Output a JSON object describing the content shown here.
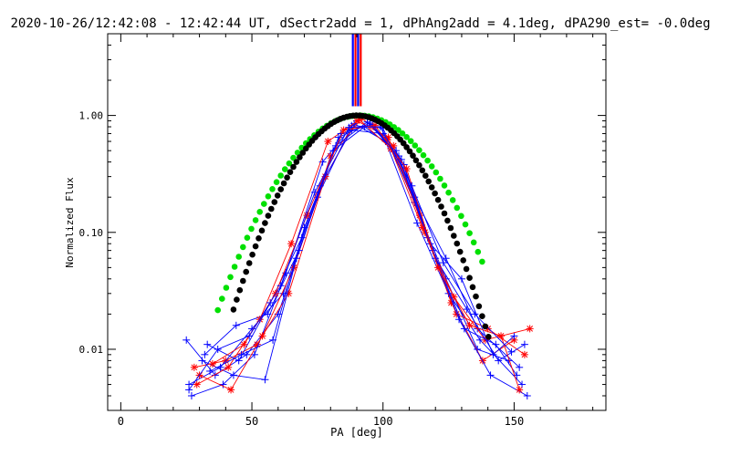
{
  "chart_data": {
    "type": "line",
    "title": "2020-10-26/12:42:08 - 12:42:44 UT, dSectr2add = 1, dPhAng2add = 4.1deg, dPA290_est= -0.0deg",
    "xlabel": "PA [deg]",
    "ylabel": "Normalized Flux",
    "xlim": [
      -5,
      185
    ],
    "ylim": [
      0.003,
      5.0
    ],
    "yscale": "log",
    "x_ticks": [
      0,
      50,
      100,
      150
    ],
    "x_tick_labels": [
      "0",
      "50",
      "100",
      "150"
    ],
    "y_ticks": [
      0.01,
      0.1,
      1.0
    ],
    "y_tick_labels": [
      "0.01",
      "0.10",
      "1.00"
    ],
    "vertical_lines": {
      "x": [
        88.5,
        89.5,
        90.5,
        91.5
      ],
      "y_from": 1.2,
      "colors": [
        "#0000ff",
        "#ff0000",
        "#0000ff",
        "#ff0000"
      ]
    },
    "model_curves": [
      {
        "name": "green-model",
        "color": "#00e000",
        "marker": "dot",
        "peak_x": 91,
        "sigma": 19.5,
        "x_start": 37,
        "x_end": 138,
        "step": 1.6
      },
      {
        "name": "black-model",
        "color": "#000000",
        "marker": "dot",
        "peak_x": 90,
        "sigma": 17.0,
        "x_start": 43,
        "x_end": 141,
        "step": 1.2
      }
    ],
    "series": [
      {
        "name": "blue-1",
        "color": "#0000ff",
        "marker": "+",
        "x": [
          25,
          36,
          48,
          60,
          75,
          88,
          100,
          112,
          124,
          136,
          148
        ],
        "y": [
          0.012,
          0.006,
          0.009,
          0.02,
          0.2,
          0.82,
          0.78,
          0.18,
          0.04,
          0.01,
          0.008
        ]
      },
      {
        "name": "red-1",
        "color": "#ff0000",
        "marker": "*",
        "x": [
          28,
          40,
          52,
          64,
          78,
          90,
          102,
          114,
          126,
          138,
          150
        ],
        "y": [
          0.007,
          0.008,
          0.011,
          0.03,
          0.3,
          0.9,
          0.65,
          0.14,
          0.025,
          0.008,
          0.012
        ]
      },
      {
        "name": "blue-2",
        "color": "#0000ff",
        "marker": "+",
        "x": [
          26,
          38,
          50,
          62,
          76,
          88,
          100,
          112,
          124,
          136,
          152
        ],
        "y": [
          0.005,
          0.007,
          0.015,
          0.03,
          0.25,
          0.75,
          0.7,
          0.2,
          0.06,
          0.015,
          0.007
        ]
      },
      {
        "name": "blue-3",
        "color": "#0000ff",
        "marker": "+",
        "x": [
          27,
          39,
          51,
          63,
          77,
          89,
          101,
          113,
          125,
          137,
          153
        ],
        "y": [
          0.004,
          0.005,
          0.009,
          0.045,
          0.4,
          0.85,
          0.6,
          0.12,
          0.03,
          0.012,
          0.005
        ]
      },
      {
        "name": "red-2",
        "color": "#ff0000",
        "marker": "*",
        "x": [
          30,
          42,
          54,
          66,
          80,
          92,
          104,
          116,
          128,
          140,
          154
        ],
        "y": [
          0.006,
          0.0045,
          0.013,
          0.05,
          0.45,
          0.95,
          0.55,
          0.1,
          0.02,
          0.015,
          0.009
        ]
      },
      {
        "name": "blue-4",
        "color": "#0000ff",
        "marker": "+",
        "x": [
          31,
          43,
          55,
          67,
          81,
          93,
          105,
          117,
          129,
          141,
          155
        ],
        "y": [
          0.008,
          0.006,
          0.0055,
          0.06,
          0.5,
          0.8,
          0.5,
          0.09,
          0.018,
          0.006,
          0.004
        ]
      },
      {
        "name": "blue-5",
        "color": "#0000ff",
        "marker": "+",
        "x": [
          32,
          44,
          56,
          68,
          82,
          94,
          106,
          118,
          130,
          142,
          150
        ],
        "y": [
          0.009,
          0.016,
          0.02,
          0.07,
          0.55,
          0.88,
          0.45,
          0.08,
          0.04,
          0.009,
          0.013
        ]
      },
      {
        "name": "red-3",
        "color": "#ff0000",
        "marker": "*",
        "x": [
          29,
          41,
          53,
          65,
          79,
          91,
          103,
          115,
          127,
          139,
          156
        ],
        "y": [
          0.005,
          0.007,
          0.018,
          0.08,
          0.6,
          0.92,
          0.52,
          0.11,
          0.028,
          0.012,
          0.015
        ]
      },
      {
        "name": "blue-6",
        "color": "#0000ff",
        "marker": "+",
        "x": [
          33,
          45,
          57,
          69,
          83,
          95,
          107,
          119,
          131,
          143,
          151
        ],
        "y": [
          0.011,
          0.008,
          0.025,
          0.09,
          0.65,
          0.86,
          0.42,
          0.07,
          0.015,
          0.011,
          0.006
        ]
      },
      {
        "name": "blue-7",
        "color": "#0000ff",
        "marker": "+",
        "x": [
          34,
          46,
          58,
          70,
          84,
          96,
          108,
          120,
          132,
          144,
          154
        ],
        "y": [
          0.0065,
          0.009,
          0.012,
          0.11,
          0.7,
          0.84,
          0.38,
          0.06,
          0.022,
          0.008,
          0.011
        ]
      },
      {
        "name": "red-4",
        "color": "#ff0000",
        "marker": "*",
        "x": [
          35,
          47,
          59,
          71,
          85,
          97,
          109,
          121,
          133,
          145,
          152
        ],
        "y": [
          0.0075,
          0.011,
          0.03,
          0.14,
          0.75,
          0.82,
          0.35,
          0.05,
          0.016,
          0.013,
          0.0045
        ]
      },
      {
        "name": "blue-8",
        "color": "#0000ff",
        "marker": "+",
        "x": [
          26,
          37,
          49,
          61,
          74,
          87,
          99,
          111,
          123,
          135,
          149
        ],
        "y": [
          0.0045,
          0.01,
          0.013,
          0.035,
          0.22,
          0.79,
          0.8,
          0.25,
          0.055,
          0.02,
          0.0095
        ]
      }
    ]
  }
}
